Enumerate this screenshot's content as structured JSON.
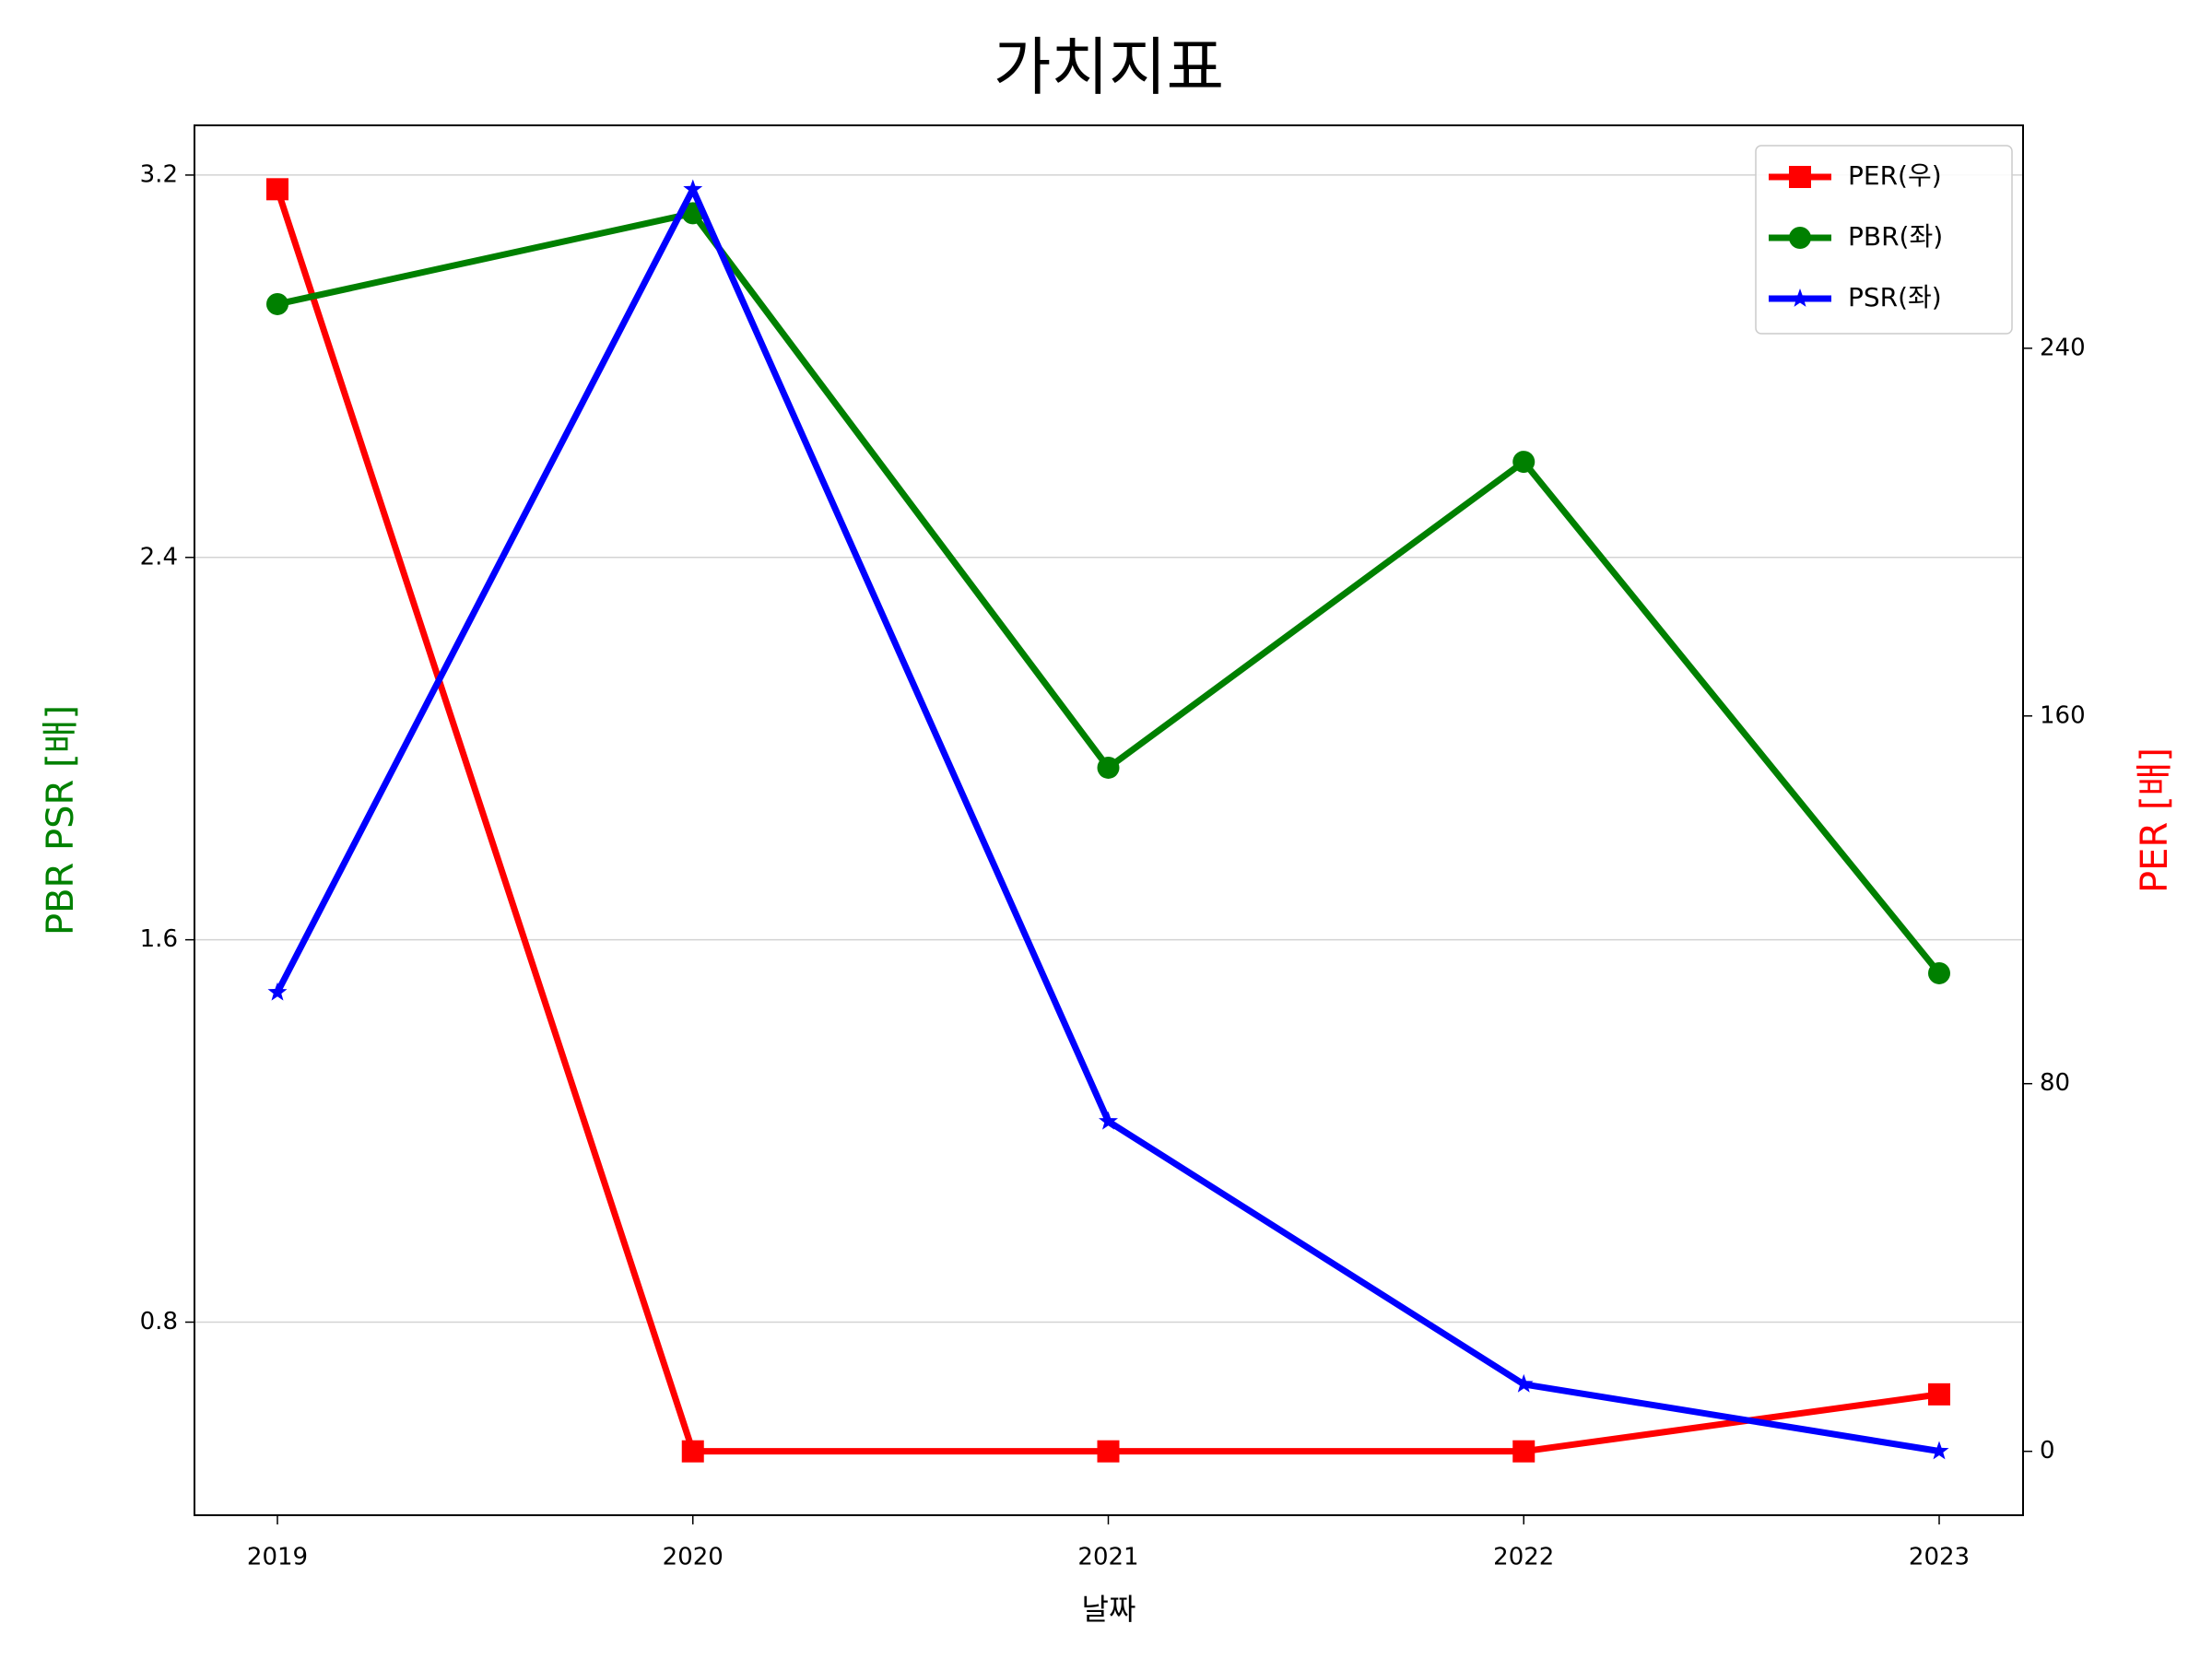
{
  "chart_data": {
    "type": "line",
    "title": "가치지표",
    "xlabel": "날짜",
    "ylabel": "PBR PSR [배]",
    "y2label": "PER [배]",
    "ylabel_color": "green",
    "y2label_color": "red",
    "categories": [
      "2019",
      "2020",
      "2021",
      "2022",
      "2023"
    ],
    "series": [
      {
        "name": "PER(우)",
        "color": "red",
        "marker": "square",
        "axis": "y2",
        "values": [
          274.6,
          0,
          0,
          0,
          12.4
        ]
      },
      {
        "name": "PBR(좌)",
        "color": "green",
        "marker": "circle",
        "values": [
          2.93,
          3.12,
          1.96,
          2.6,
          1.53
        ]
      },
      {
        "name": "PSR(좌)",
        "color": "blue",
        "marker": "star",
        "values": [
          1.49,
          3.17,
          1.22,
          0.67,
          0.53
        ]
      }
    ],
    "ylim": [
      0.396,
      3.304
    ],
    "yticks": [
      0.8,
      1.6,
      2.4,
      3.2
    ],
    "y2lim": [
      -13.9,
      288.5
    ],
    "y2ticks": [
      0,
      80,
      160,
      240
    ],
    "grid": true,
    "legend": "upper right"
  }
}
